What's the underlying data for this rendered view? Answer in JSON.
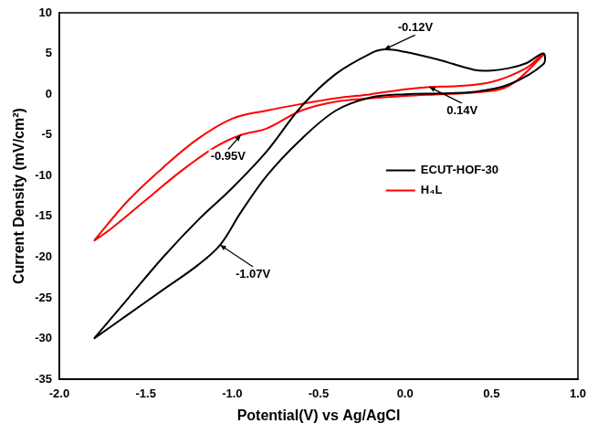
{
  "chart_data": {
    "type": "line",
    "x_label": "Potential(V) vs Ag/AgCl",
    "y_label": "Current Density (mV/cm²)",
    "xlim": [
      -2.0,
      1.0
    ],
    "xticks": [
      {
        "value": -2.0,
        "label": "-2.0"
      },
      {
        "value": -1.5,
        "label": "-1.5"
      },
      {
        "value": -1.0,
        "label": "-1.0"
      },
      {
        "value": -0.5,
        "label": "-0.5"
      },
      {
        "value": 0,
        "label": "0.0"
      },
      {
        "value": 0.5,
        "label": "0.5"
      },
      {
        "value": 1.0,
        "label": "1.0"
      }
    ],
    "ylim": [
      -35,
      10
    ],
    "yticks": [
      -35,
      -30,
      -25,
      -20,
      -15,
      -10,
      -5,
      0,
      5,
      10
    ],
    "grid": false,
    "legend": "right",
    "series": [
      {
        "name": "ECUT-HOF-30",
        "color": "#000000",
        "marker": "none",
        "line_style": "solid",
        "x": [
          -1.8,
          -1.6,
          -1.4,
          -1.2,
          -1.0,
          -0.8,
          -0.6,
          -0.4,
          -0.2,
          -0.12,
          0.0,
          0.2,
          0.4,
          0.5,
          0.6,
          0.7,
          0.8,
          0.8,
          0.6,
          0.4,
          0.2,
          0.0,
          -0.2,
          -0.4,
          -0.6,
          -0.8,
          -0.95,
          -1.07,
          -1.2,
          -1.4,
          -1.6,
          -1.8
        ],
        "values": [
          -30,
          -25,
          -20,
          -15.5,
          -11.5,
          -7,
          -1.5,
          2.5,
          5,
          5.5,
          5.2,
          4.2,
          3.0,
          2.9,
          3.2,
          3.8,
          5.0,
          3.7,
          1.2,
          0.3,
          0.1,
          0,
          -0.4,
          -2,
          -5.5,
          -10,
          -14.5,
          -18.5,
          -21,
          -24,
          -27,
          -30
        ]
      },
      {
        "name": "H₄L",
        "color": "#ff0000",
        "marker": "none",
        "line_style": "solid",
        "x": [
          -1.8,
          -1.6,
          -1.4,
          -1.2,
          -1.0,
          -0.8,
          -0.6,
          -0.4,
          -0.2,
          0.0,
          0.14,
          0.3,
          0.5,
          0.7,
          0.8,
          0.8,
          0.6,
          0.4,
          0.2,
          0.0,
          -0.2,
          -0.4,
          -0.6,
          -0.8,
          -0.95,
          -1.1,
          -1.3,
          -1.5,
          -1.7,
          -1.8
        ],
        "values": [
          -18,
          -13,
          -9,
          -5.5,
          -3,
          -2,
          -1.2,
          -0.5,
          0,
          0.6,
          0.9,
          1.0,
          1.5,
          3.2,
          5.0,
          4.8,
          1.0,
          0.2,
          0,
          -0.2,
          -0.5,
          -0.9,
          -2,
          -4.2,
          -5.0,
          -6.5,
          -9.5,
          -13,
          -16.5,
          -18
        ]
      }
    ],
    "annotations": [
      {
        "text": "-0.12V",
        "x": -0.12,
        "y": 5.5
      },
      {
        "text": "0.14V",
        "x": 0.14,
        "y": 0.9
      },
      {
        "text": "-0.95V",
        "x": -0.95,
        "y": -5.0
      },
      {
        "text": "-1.07V",
        "x": -1.07,
        "y": -18.5
      }
    ]
  }
}
